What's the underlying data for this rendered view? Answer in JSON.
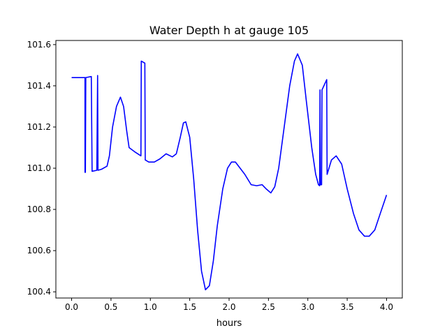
{
  "chart_data": {
    "type": "line",
    "title": "Water Depth h at gauge 105",
    "xlabel": "hours",
    "ylabel": "",
    "xlim": [
      -0.2,
      4.2
    ],
    "ylim": [
      100.37,
      101.62
    ],
    "xticks": [
      0.0,
      0.5,
      1.0,
      1.5,
      2.0,
      2.5,
      3.0,
      3.5,
      4.0
    ],
    "xtick_labels": [
      "0.0",
      "0.5",
      "1.0",
      "1.5",
      "2.0",
      "2.5",
      "3.0",
      "3.5",
      "4.0"
    ],
    "yticks": [
      100.4,
      100.6,
      100.8,
      101.0,
      101.2,
      101.4,
      101.6
    ],
    "ytick_labels": [
      "100.4",
      "100.6",
      "100.8",
      "101.0",
      "101.2",
      "101.4",
      "101.6"
    ],
    "grid": false,
    "series": [
      {
        "color": "#0000ff",
        "points": [
          [
            0.0,
            101.44
          ],
          [
            0.17,
            101.44
          ],
          [
            0.17,
            100.98
          ],
          [
            0.175,
            100.98
          ],
          [
            0.18,
            101.44
          ],
          [
            0.25,
            101.445
          ],
          [
            0.26,
            100.985
          ],
          [
            0.32,
            100.99
          ],
          [
            0.33,
            101.45
          ],
          [
            0.335,
            100.99
          ],
          [
            0.38,
            100.995
          ],
          [
            0.45,
            101.01
          ],
          [
            0.48,
            101.06
          ],
          [
            0.52,
            101.2
          ],
          [
            0.57,
            101.3
          ],
          [
            0.62,
            101.345
          ],
          [
            0.66,
            101.3
          ],
          [
            0.7,
            101.18
          ],
          [
            0.73,
            101.1
          ],
          [
            0.8,
            101.08
          ],
          [
            0.88,
            101.06
          ],
          [
            0.885,
            101.52
          ],
          [
            0.93,
            101.51
          ],
          [
            0.935,
            101.04
          ],
          [
            0.98,
            101.03
          ],
          [
            1.05,
            101.03
          ],
          [
            1.12,
            101.045
          ],
          [
            1.2,
            101.07
          ],
          [
            1.28,
            101.055
          ],
          [
            1.33,
            101.07
          ],
          [
            1.38,
            101.15
          ],
          [
            1.42,
            101.22
          ],
          [
            1.45,
            101.225
          ],
          [
            1.5,
            101.15
          ],
          [
            1.55,
            100.95
          ],
          [
            1.6,
            100.7
          ],
          [
            1.65,
            100.5
          ],
          [
            1.7,
            100.41
          ],
          [
            1.75,
            100.43
          ],
          [
            1.8,
            100.55
          ],
          [
            1.85,
            100.72
          ],
          [
            1.92,
            100.9
          ],
          [
            1.98,
            101.0
          ],
          [
            2.03,
            101.03
          ],
          [
            2.08,
            101.03
          ],
          [
            2.2,
            100.97
          ],
          [
            2.28,
            100.92
          ],
          [
            2.35,
            100.915
          ],
          [
            2.42,
            100.92
          ],
          [
            2.47,
            100.9
          ],
          [
            2.53,
            100.88
          ],
          [
            2.58,
            100.91
          ],
          [
            2.63,
            101.0
          ],
          [
            2.7,
            101.2
          ],
          [
            2.77,
            101.4
          ],
          [
            2.83,
            101.52
          ],
          [
            2.87,
            101.555
          ],
          [
            2.93,
            101.5
          ],
          [
            2.98,
            101.33
          ],
          [
            3.05,
            101.1
          ],
          [
            3.1,
            100.97
          ],
          [
            3.135,
            100.92
          ],
          [
            3.15,
            100.915
          ],
          [
            3.155,
            101.38
          ],
          [
            3.16,
            100.92
          ],
          [
            3.175,
            100.92
          ],
          [
            3.18,
            101.38
          ],
          [
            3.24,
            101.43
          ],
          [
            3.245,
            100.97
          ],
          [
            3.3,
            101.04
          ],
          [
            3.36,
            101.06
          ],
          [
            3.43,
            101.02
          ],
          [
            3.5,
            100.9
          ],
          [
            3.58,
            100.78
          ],
          [
            3.65,
            100.7
          ],
          [
            3.72,
            100.67
          ],
          [
            3.78,
            100.67
          ],
          [
            3.85,
            100.7
          ],
          [
            3.92,
            100.78
          ],
          [
            4.0,
            100.87
          ]
        ]
      }
    ]
  }
}
